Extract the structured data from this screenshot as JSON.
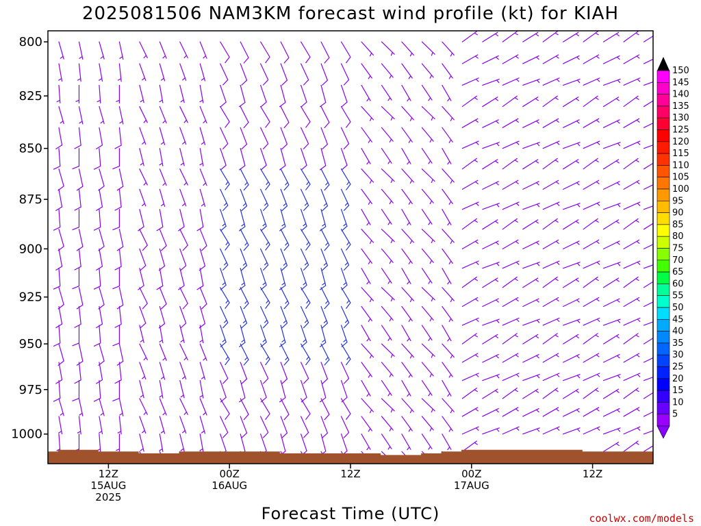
{
  "chart_data": {
    "type": "wind-barb-profile",
    "title": "2025081506 NAM3KM forecast wind profile (kt) for KIAH",
    "xlabel": "Forecast Time (UTC)",
    "ylabel": "",
    "y_ticks": [
      "800",
      "825",
      "850",
      "875",
      "900",
      "925",
      "950",
      "975",
      "1000"
    ],
    "y_tick_values": [
      800,
      825,
      850,
      875,
      900,
      925,
      950,
      975,
      1000
    ],
    "ylim": [
      1017,
      795
    ],
    "x_ticks": [
      {
        "hour": 6,
        "line1": "12Z",
        "line2": "15AUG",
        "line3": "2025"
      },
      {
        "hour": 18,
        "line1": "00Z",
        "line2": "16AUG",
        "line3": ""
      },
      {
        "hour": 30,
        "line1": "12Z",
        "line2": "",
        "line3": ""
      },
      {
        "hour": 42,
        "line1": "00Z",
        "line2": "17AUG",
        "line3": ""
      },
      {
        "hour": 54,
        "line1": "12Z",
        "line2": "",
        "line3": ""
      }
    ],
    "xlim": [
      0,
      60
    ],
    "levels": [
      800,
      810,
      820,
      830,
      840,
      850,
      860,
      870,
      880,
      890,
      900,
      910,
      920,
      930,
      940,
      950,
      960,
      970,
      980,
      990,
      1000,
      1010
    ],
    "times": [
      0,
      2,
      4,
      6,
      8,
      10,
      12,
      14,
      16,
      18,
      20,
      22,
      24,
      26,
      28,
      30,
      32,
      34,
      36,
      38,
      40,
      42,
      44,
      46,
      48,
      50,
      52,
      54,
      56,
      58,
      60
    ],
    "surface_pressure": [
      1010,
      1009,
      1009,
      1010,
      1010,
      1011,
      1011,
      1010,
      1010,
      1010,
      1010,
      1010,
      1011,
      1011,
      1011,
      1011,
      1011,
      1012,
      1012,
      1011,
      1010,
      1009,
      1009,
      1009,
      1009,
      1009,
      1009,
      1010,
      1010,
      1010,
      1010
    ],
    "wind_segments": [
      {
        "t_from": 0,
        "t_to": 8,
        "speed": 12,
        "dir": 170,
        "speed_low": 8
      },
      {
        "t_from": 8,
        "t_to": 16,
        "speed": 10,
        "dir": 160,
        "speed_low": 8
      },
      {
        "t_from": 16,
        "t_to": 30,
        "speed": 17,
        "dir": 155,
        "speed_low": 12
      },
      {
        "t_from": 30,
        "t_to": 40,
        "speed": 9,
        "dir": 140,
        "speed_low": 6
      },
      {
        "t_from": 40,
        "t_to": 61,
        "speed": 7,
        "dir": 60,
        "speed_low": 8
      }
    ],
    "colorbar": {
      "label_values": [
        150,
        145,
        140,
        135,
        130,
        125,
        120,
        115,
        110,
        105,
        100,
        95,
        90,
        85,
        80,
        75,
        70,
        65,
        60,
        55,
        50,
        45,
        40,
        35,
        30,
        25,
        20,
        15,
        10,
        5
      ],
      "colors": [
        "#ff00ff",
        "#ff00cc",
        "#ff0099",
        "#ff0066",
        "#ff0033",
        "#ff0000",
        "#ff1a00",
        "#ff3300",
        "#ff5500",
        "#ff7700",
        "#ff9900",
        "#ffbb00",
        "#ffdd00",
        "#ffff00",
        "#ccff00",
        "#88ff00",
        "#44ff00",
        "#00ff44",
        "#00ff99",
        "#00ffcc",
        "#00ddff",
        "#00aaff",
        "#0088ff",
        "#0066ff",
        "#0044ff",
        "#0022ff",
        "#0000ff",
        "#3300ff",
        "#6600ff",
        "#9900ff"
      ]
    },
    "credit": "coolwx.com/models",
    "colors": {
      "ground": "#a0522d",
      "credit": "#cc0000",
      "barb_default": "#8800ee",
      "barb_blue": "#2233dd"
    }
  }
}
